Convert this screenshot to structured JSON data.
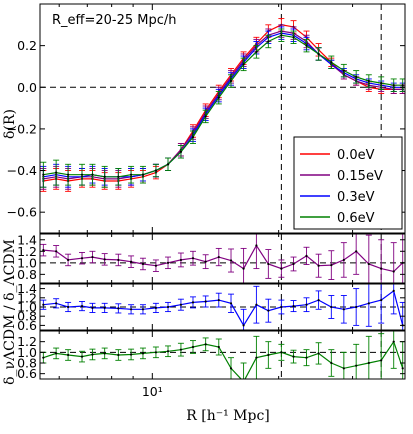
{
  "chart_data": {
    "type": "line",
    "annotation": "R_eff=20-25 Mpc/h",
    "xlabel": "R [h⁻¹ Mpc]",
    "x_scale": "log",
    "xlim": [
      5.4,
      40
    ],
    "x_major_tick_labels": [
      "10¹"
    ],
    "top_panel": {
      "ylabel": "δ(R)",
      "ylim": [
        -0.7,
        0.4
      ],
      "y_tick_labels": [
        "−0.6",
        "−0.4",
        "−0.2",
        "0.0",
        "0.2"
      ],
      "x": [
        5.5,
        5.9,
        6.3,
        6.8,
        7.2,
        7.7,
        8.3,
        8.9,
        9.5,
        10.2,
        10.9,
        11.7,
        12.5,
        13.4,
        14.4,
        15.4,
        16.5,
        17.7,
        18.9,
        20.3,
        21.7,
        23.3,
        24.9,
        26.7,
        28.6,
        30.6,
        32.8,
        35.1,
        37.6,
        39.5
      ],
      "series": [
        {
          "name": "0.0eV",
          "color": "#ff0000",
          "values": [
            -0.45,
            -0.44,
            -0.45,
            -0.44,
            -0.44,
            -0.45,
            -0.45,
            -0.44,
            -0.43,
            -0.41,
            -0.37,
            -0.3,
            -0.21,
            -0.11,
            -0.02,
            0.06,
            0.14,
            0.21,
            0.27,
            0.3,
            0.29,
            0.24,
            0.18,
            0.12,
            0.06,
            0.03,
            0.0,
            -0.01,
            -0.01,
            -0.01
          ],
          "errors": [
            0.05,
            0.05,
            0.05,
            0.04,
            0.04,
            0.04,
            0.04,
            0.04,
            0.03,
            0.03,
            0.03,
            0.03,
            0.03,
            0.03,
            0.03,
            0.03,
            0.03,
            0.03,
            0.03,
            0.03,
            0.03,
            0.03,
            0.03,
            0.02,
            0.02,
            0.02,
            0.02,
            0.02,
            0.02,
            0.02
          ]
        },
        {
          "name": "0.15eV",
          "color": "#800080",
          "values": [
            -0.44,
            -0.43,
            -0.44,
            -0.43,
            -0.43,
            -0.44,
            -0.44,
            -0.43,
            -0.42,
            -0.4,
            -0.37,
            -0.3,
            -0.22,
            -0.12,
            -0.03,
            0.05,
            0.13,
            0.2,
            0.25,
            0.27,
            0.26,
            0.22,
            0.16,
            0.11,
            0.06,
            0.03,
            0.01,
            0.0,
            -0.01,
            -0.01
          ],
          "errors": [
            0.05,
            0.05,
            0.05,
            0.04,
            0.04,
            0.04,
            0.04,
            0.04,
            0.03,
            0.03,
            0.03,
            0.03,
            0.03,
            0.03,
            0.03,
            0.03,
            0.03,
            0.03,
            0.03,
            0.03,
            0.03,
            0.03,
            0.03,
            0.02,
            0.02,
            0.02,
            0.02,
            0.02,
            0.02,
            0.02
          ]
        },
        {
          "name": "0.3eV",
          "color": "#0000ff",
          "values": [
            -0.43,
            -0.42,
            -0.43,
            -0.43,
            -0.42,
            -0.43,
            -0.43,
            -0.43,
            -0.42,
            -0.4,
            -0.37,
            -0.31,
            -0.23,
            -0.13,
            -0.04,
            0.04,
            0.12,
            0.19,
            0.24,
            0.26,
            0.25,
            0.21,
            0.16,
            0.11,
            0.07,
            0.04,
            0.02,
            0.01,
            0.0,
            0.0
          ],
          "errors": [
            0.05,
            0.05,
            0.05,
            0.04,
            0.04,
            0.04,
            0.04,
            0.04,
            0.03,
            0.03,
            0.03,
            0.03,
            0.03,
            0.03,
            0.03,
            0.03,
            0.03,
            0.03,
            0.03,
            0.03,
            0.03,
            0.03,
            0.03,
            0.02,
            0.02,
            0.02,
            0.02,
            0.02,
            0.02,
            0.02
          ]
        },
        {
          "name": "0.6eV",
          "color": "#008000",
          "values": [
            -0.42,
            -0.41,
            -0.42,
            -0.42,
            -0.42,
            -0.43,
            -0.43,
            -0.42,
            -0.42,
            -0.4,
            -0.37,
            -0.31,
            -0.24,
            -0.14,
            -0.05,
            0.03,
            0.11,
            0.17,
            0.22,
            0.25,
            0.24,
            0.2,
            0.16,
            0.12,
            0.08,
            0.05,
            0.03,
            0.02,
            0.01,
            0.01
          ],
          "errors": [
            0.06,
            0.06,
            0.05,
            0.05,
            0.05,
            0.05,
            0.04,
            0.04,
            0.04,
            0.03,
            0.03,
            0.03,
            0.03,
            0.03,
            0.03,
            0.03,
            0.03,
            0.03,
            0.03,
            0.03,
            0.03,
            0.03,
            0.03,
            0.03,
            0.03,
            0.03,
            0.03,
            0.03,
            0.03,
            0.03
          ]
        }
      ],
      "vlines": [
        20.3,
        35.1
      ],
      "hline": 0.0,
      "legend_position": "lower right"
    },
    "ratio_ylabel": "δ_νΛCDM / δ_ΛCDM",
    "ratio_panels": [
      {
        "series_name": "0.15eV",
        "color": "#800080",
        "ylim": [
          0.65,
          1.5
        ],
        "y_tick_labels": [
          "0.8",
          "1.0",
          "1.2",
          "1.4"
        ],
        "values": [
          1.22,
          1.2,
          1.05,
          1.08,
          1.1,
          1.06,
          1.05,
          1.02,
          0.98,
          0.95,
          1.0,
          1.05,
          1.08,
          1.02,
          1.1,
          1.04,
          0.9,
          1.3,
          0.98,
          0.9,
          0.98,
          1.12,
          0.95,
          0.96,
          1.05,
          1.2,
          0.98,
          0.9,
          0.85,
          1.0
        ],
        "errors": [
          0.1,
          0.1,
          0.1,
          0.1,
          0.1,
          0.1,
          0.1,
          0.1,
          0.1,
          0.1,
          0.1,
          0.12,
          0.12,
          0.12,
          0.15,
          0.2,
          0.35,
          0.4,
          0.25,
          0.15,
          0.12,
          0.15,
          0.2,
          0.25,
          0.3,
          0.4,
          0.5,
          0.5,
          0.5,
          0.5
        ]
      },
      {
        "series_name": "0.3eV",
        "color": "#0000ff",
        "ylim": [
          0.5,
          1.5
        ],
        "y_tick_labels": [
          "0.6",
          "0.8",
          "1.0",
          "1.2",
          "1.4"
        ],
        "values": [
          1.05,
          1.08,
          1.0,
          1.02,
          0.98,
          0.98,
          0.97,
          0.95,
          0.95,
          0.98,
          1.0,
          1.05,
          1.1,
          1.12,
          1.15,
          1.08,
          0.6,
          1.05,
          0.92,
          1.0,
          1.02,
          1.05,
          1.15,
          1.0,
          0.95,
          1.0,
          1.08,
          1.15,
          1.35,
          0.6
        ],
        "errors": [
          0.1,
          0.1,
          0.1,
          0.1,
          0.1,
          0.1,
          0.1,
          0.1,
          0.1,
          0.1,
          0.1,
          0.12,
          0.12,
          0.12,
          0.15,
          0.2,
          0.35,
          0.4,
          0.25,
          0.15,
          0.12,
          0.15,
          0.2,
          0.25,
          0.3,
          0.4,
          0.5,
          0.5,
          0.5,
          0.5
        ]
      },
      {
        "series_name": "0.6eV",
        "color": "#008000",
        "ylim": [
          0.5,
          1.4
        ],
        "y_tick_labels": [
          "0.6",
          "0.8",
          "1.0",
          "1.2"
        ],
        "values": [
          0.9,
          0.98,
          0.95,
          0.92,
          0.96,
          0.98,
          0.95,
          0.96,
          0.98,
          1.0,
          1.02,
          1.05,
          1.1,
          1.15,
          1.1,
          0.7,
          0.45,
          0.9,
          0.95,
          1.0,
          0.92,
          0.9,
          0.98,
          0.8,
          0.7,
          0.75,
          0.8,
          0.85,
          1.2,
          0.7
        ],
        "errors": [
          0.1,
          0.1,
          0.1,
          0.1,
          0.1,
          0.1,
          0.1,
          0.1,
          0.1,
          0.1,
          0.1,
          0.12,
          0.12,
          0.12,
          0.15,
          0.2,
          0.35,
          0.4,
          0.25,
          0.15,
          0.12,
          0.15,
          0.2,
          0.25,
          0.3,
          0.4,
          0.5,
          0.5,
          0.5,
          0.5
        ]
      }
    ]
  }
}
